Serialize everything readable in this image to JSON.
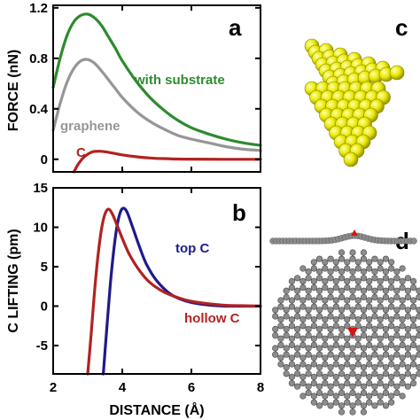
{
  "chart_data": [
    {
      "panel": "a",
      "type": "line",
      "ylabel": "FORCE (nN)",
      "xlim": [
        2,
        8
      ],
      "ylim": [
        -0.1,
        1.22
      ],
      "yticks": [
        "0",
        "0.4",
        "0.8",
        "1.2"
      ],
      "ytick_values": [
        0,
        0.4,
        0.8,
        1.2
      ],
      "series": [
        {
          "name": "with substrate",
          "color": "#2e8b2e",
          "x": [
            2.0,
            2.2,
            2.4,
            2.6,
            2.8,
            3.0,
            3.2,
            3.4,
            3.6,
            3.8,
            4.0,
            4.4,
            4.8,
            5.2,
            5.6,
            6.0,
            6.5,
            7.0,
            7.5,
            8.0
          ],
          "y": [
            0.57,
            0.8,
            0.98,
            1.09,
            1.14,
            1.15,
            1.12,
            1.06,
            0.97,
            0.88,
            0.78,
            0.62,
            0.49,
            0.39,
            0.31,
            0.25,
            0.2,
            0.16,
            0.13,
            0.11
          ]
        },
        {
          "name": "graphene",
          "color": "#969696",
          "x": [
            2.0,
            2.2,
            2.4,
            2.6,
            2.8,
            3.0,
            3.2,
            3.4,
            3.6,
            3.8,
            4.0,
            4.4,
            4.8,
            5.2,
            5.6,
            6.0,
            6.5,
            7.0,
            7.5,
            8.0
          ],
          "y": [
            0.23,
            0.44,
            0.61,
            0.72,
            0.78,
            0.79,
            0.76,
            0.7,
            0.63,
            0.56,
            0.49,
            0.38,
            0.3,
            0.24,
            0.19,
            0.16,
            0.13,
            0.1,
            0.08,
            0.07
          ]
        },
        {
          "name": "C",
          "color": "#b22222",
          "x": [
            2.6,
            2.7,
            2.8,
            2.9,
            3.0,
            3.1,
            3.2,
            3.4,
            3.6,
            3.8,
            4.0,
            4.4,
            4.8,
            5.2,
            5.6,
            6.0,
            7.0,
            8.0
          ],
          "y": [
            -0.1,
            -0.05,
            -0.01,
            0.02,
            0.04,
            0.055,
            0.062,
            0.063,
            0.055,
            0.045,
            0.035,
            0.02,
            0.01,
            0.005,
            0.002,
            0.001,
            0.0,
            0.0
          ]
        }
      ],
      "labels": {
        "with_substrate": "with substrate",
        "graphene": "graphene",
        "c": "C"
      }
    },
    {
      "panel": "b",
      "type": "line",
      "ylabel": "C LIFTING (pm)",
      "xlabel": "DISTANCE (Å)",
      "xlim": [
        2,
        8
      ],
      "ylim": [
        -8.6,
        15
      ],
      "xticks": [
        "2",
        "4",
        "6",
        "8"
      ],
      "xtick_values": [
        2,
        4,
        6,
        8
      ],
      "yticks": [
        "-5",
        "0",
        "5",
        "10",
        "15"
      ],
      "ytick_values": [
        -5,
        0,
        5,
        10,
        15
      ],
      "series": [
        {
          "name": "top C",
          "color": "#1f1a8a",
          "x": [
            3.45,
            3.55,
            3.65,
            3.75,
            3.85,
            3.95,
            4.05,
            4.15,
            4.3,
            4.5,
            4.7,
            5.0,
            5.4,
            5.8,
            6.2,
            6.6,
            7.0,
            7.5,
            8.0
          ],
          "y": [
            -8.6,
            -3.0,
            2.5,
            7.0,
            10.2,
            12.0,
            12.4,
            11.8,
            10.0,
            7.5,
            5.3,
            3.2,
            1.5,
            0.7,
            0.3,
            0.1,
            0.0,
            0.0,
            0.0
          ]
        },
        {
          "name": "hollow C",
          "color": "#b22222",
          "x": [
            3.0,
            3.1,
            3.2,
            3.3,
            3.4,
            3.5,
            3.6,
            3.7,
            3.8,
            4.0,
            4.2,
            4.5,
            4.8,
            5.2,
            5.6,
            6.0,
            6.5,
            7.0,
            7.5,
            8.0
          ],
          "y": [
            -8.6,
            -3.5,
            2.0,
            6.5,
            9.8,
            11.7,
            12.3,
            11.8,
            10.8,
            8.6,
            6.6,
            4.5,
            3.0,
            1.8,
            1.1,
            0.6,
            0.3,
            0.1,
            0.05,
            0.0
          ]
        }
      ],
      "labels": {
        "top_c": "top C",
        "hollow_c": "hollow C"
      }
    }
  ],
  "panels": {
    "a": "a",
    "b": "b",
    "c": "c",
    "d": "d"
  },
  "colors": {
    "cluster": "#e8e800",
    "graphene": "#8c8c8c",
    "highlight": "#d41515"
  }
}
